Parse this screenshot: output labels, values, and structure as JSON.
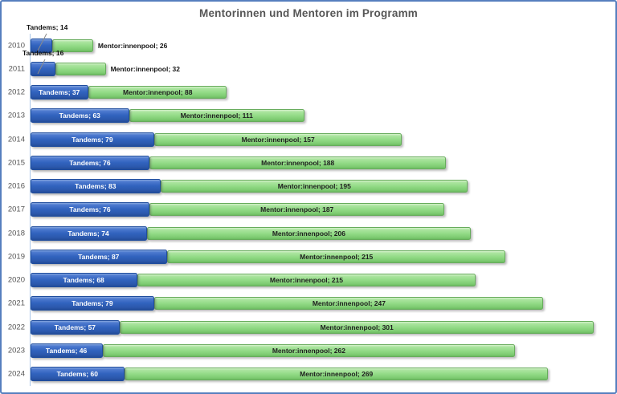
{
  "chart_data": {
    "type": "bar",
    "orientation": "horizontal",
    "stacked": true,
    "title": "Mentorinnen und Mentoren im Programm",
    "categories": [
      "2010",
      "2011",
      "2012",
      "2013",
      "2014",
      "2015",
      "2016",
      "2017",
      "2018",
      "2019",
      "2020",
      "2021",
      "2022",
      "2023",
      "2024"
    ],
    "series": [
      {
        "name": "Tandems",
        "color": "#3163BE",
        "values": [
          14,
          16,
          37,
          63,
          79,
          76,
          83,
          76,
          74,
          87,
          68,
          79,
          57,
          46,
          60
        ]
      },
      {
        "name": "Mentor:innenpool",
        "color": "#93DB87",
        "values": [
          26,
          32,
          88,
          111,
          157,
          188,
          195,
          187,
          206,
          215,
          215,
          247,
          301,
          262,
          269
        ]
      }
    ],
    "label_format": "{series}; {value}",
    "outside_label_rows": [
      0,
      1
    ],
    "legend": "none",
    "grid": false
  },
  "colors": {
    "frame_border": "#567FBE",
    "axis_line": "#A9C6E8",
    "title_text": "#565656",
    "tandems_fill": "#3163BE",
    "mentorpool_fill": "#93DB87"
  }
}
